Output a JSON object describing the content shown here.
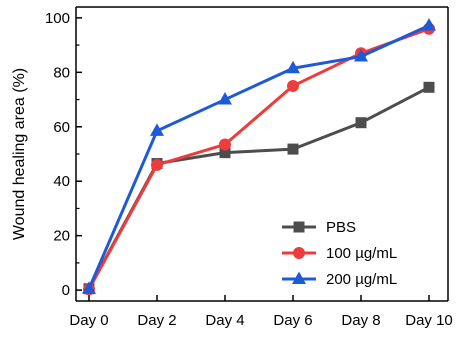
{
  "chart_data": {
    "type": "line",
    "title": "",
    "xlabel": "",
    "ylabel": "Wound healing area (%)",
    "categories": [
      "Day 0",
      "Day 2",
      "Day 4",
      "Day 6",
      "Day 8",
      "Day 10"
    ],
    "ylim": [
      -4,
      104
    ],
    "yticks": [
      0,
      20,
      40,
      60,
      80,
      100
    ],
    "grid": false,
    "legend": {
      "position": "bottom-right"
    },
    "series": [
      {
        "name": "PBS",
        "color": "#4d4d4d",
        "marker": "square",
        "values": [
          0.5,
          46.5,
          50.5,
          51.8,
          61.5,
          74.5
        ]
      },
      {
        "name": "100 µg/mL",
        "color": "#ee3b3b",
        "marker": "circle",
        "values": [
          0.3,
          46.0,
          53.5,
          75.0,
          87.0,
          96.0
        ]
      },
      {
        "name": "200 µg/mL",
        "color": "#1f5ad6",
        "marker": "triangle",
        "values": [
          0.5,
          58.5,
          70.0,
          81.5,
          85.8,
          97.2
        ]
      }
    ]
  }
}
